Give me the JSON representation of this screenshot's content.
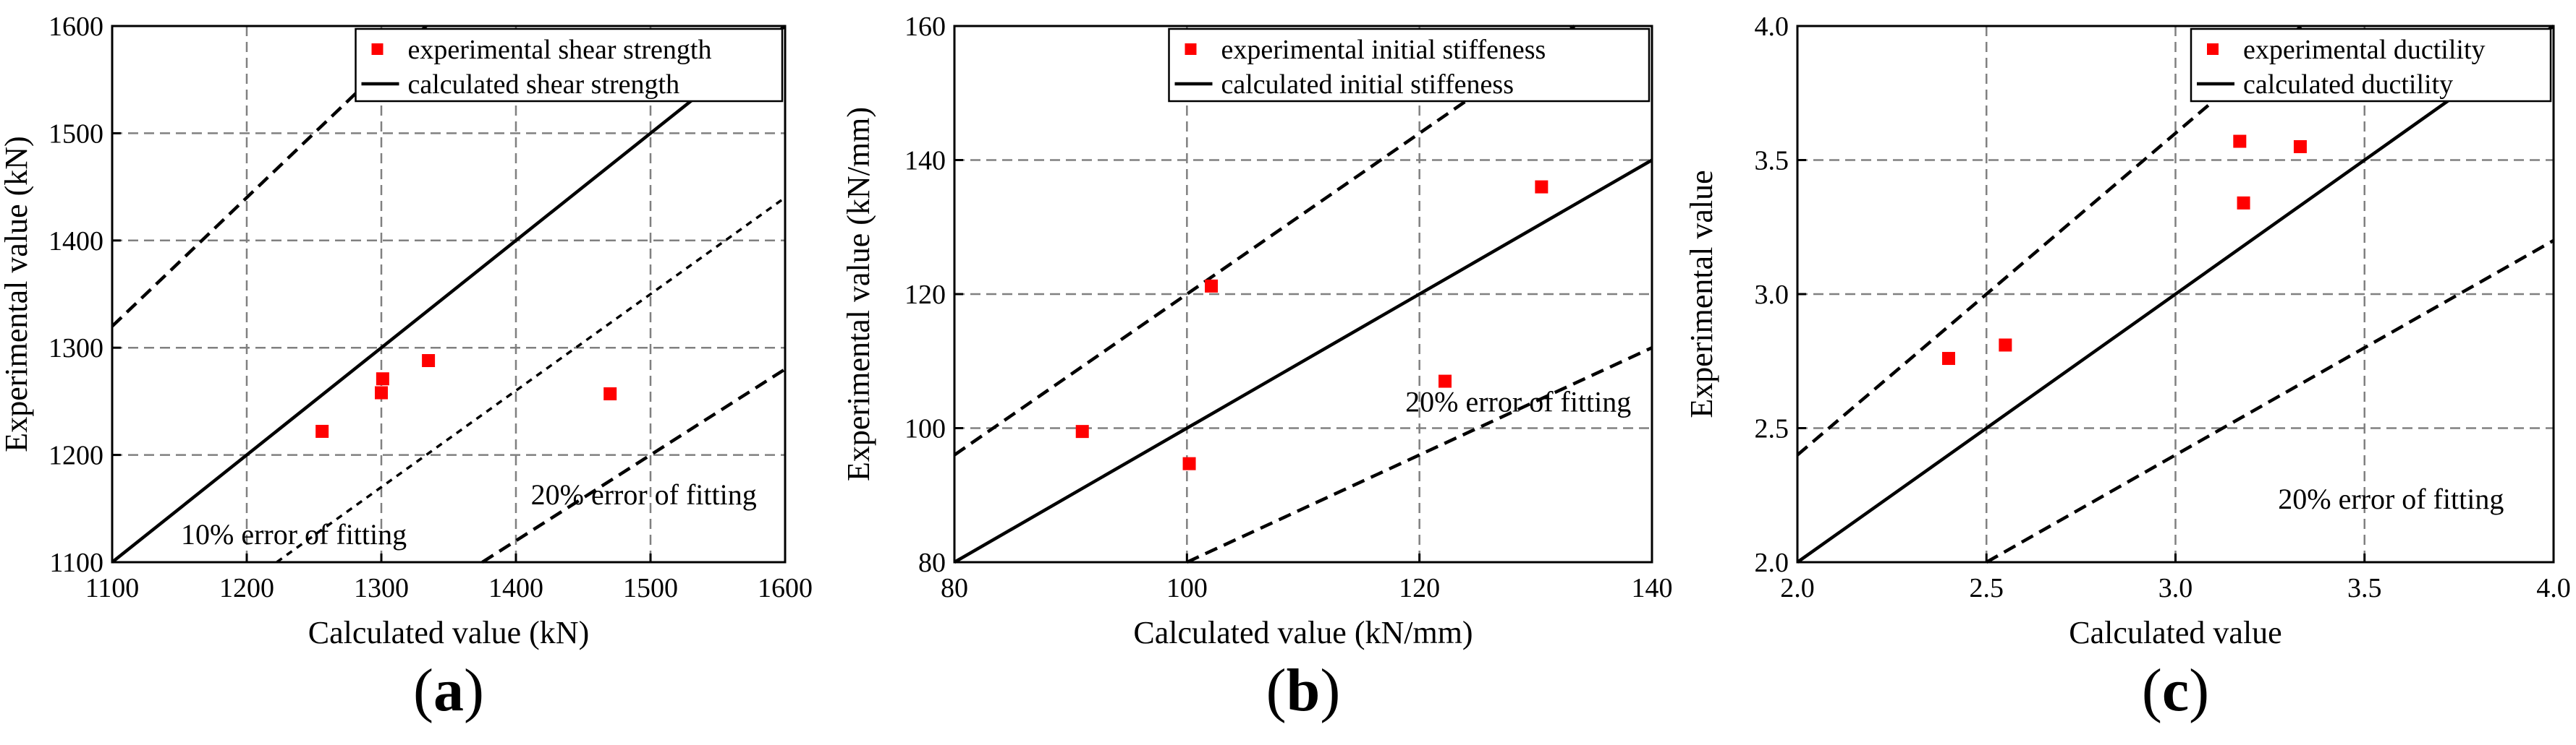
{
  "colors": {
    "marker": "#ff0000",
    "axis": "#000000",
    "grid": "#808080",
    "background": "#ffffff"
  },
  "chart_data": [
    {
      "type": "scatter",
      "panel_label": "(a)",
      "xlabel": "Calculated value (kN)",
      "ylabel": "Experimental value (kN)",
      "xlim": [
        1100,
        1600
      ],
      "ylim": [
        1100,
        1600
      ],
      "xticks": [
        1100,
        1200,
        1300,
        1400,
        1500,
        1600
      ],
      "yticks": [
        1100,
        1200,
        1300,
        1400,
        1500,
        1600
      ],
      "xtick_labels": [
        "1100",
        "1200",
        "1300",
        "1400",
        "1500",
        "1600"
      ],
      "ytick_labels": [
        "1100",
        "1200",
        "1300",
        "1400",
        "1500",
        "1600"
      ],
      "grid": true,
      "legend": {
        "position": "top-right",
        "entries": [
          {
            "label": "experimental shear strength",
            "kind": "marker"
          },
          {
            "label": "calculated shear strength",
            "kind": "line"
          }
        ]
      },
      "scatter": [
        {
          "x": 1256,
          "y": 1222
        },
        {
          "x": 1301,
          "y": 1271
        },
        {
          "x": 1300,
          "y": 1258
        },
        {
          "x": 1335,
          "y": 1288
        },
        {
          "x": 1470,
          "y": 1257
        }
      ],
      "lines": [
        {
          "kind": "calculated",
          "slope": 1.0,
          "style": "solid"
        },
        {
          "kind": "error",
          "slope": 1.2,
          "style": "dashed"
        },
        {
          "kind": "error",
          "slope": 0.9,
          "style": "dotted"
        },
        {
          "kind": "error",
          "slope": 0.8,
          "style": "dashed"
        }
      ],
      "annotations": [
        {
          "text": "20% error of fitting",
          "x": 1495,
          "y": 1154,
          "anchor": "middle"
        },
        {
          "text": "10% error of fitting",
          "x": 1235,
          "y": 1117,
          "anchor": "middle"
        }
      ]
    },
    {
      "type": "scatter",
      "panel_label": "(b)",
      "xlabel": "Calculated value (kN/mm)",
      "ylabel": "Experimental value (kN/mm)",
      "xlim": [
        80,
        140
      ],
      "ylim": [
        80,
        160
      ],
      "xticks": [
        80,
        100,
        120,
        140
      ],
      "yticks": [
        80,
        100,
        120,
        140,
        160
      ],
      "xtick_labels": [
        "80",
        "100",
        "120",
        "140"
      ],
      "ytick_labels": [
        "80",
        "100",
        "120",
        "140",
        "160"
      ],
      "grid": true,
      "legend": {
        "position": "top-right",
        "entries": [
          {
            "label": "experimental initial stiffeness",
            "kind": "marker"
          },
          {
            "label": "calculated initial stiffeness",
            "kind": "line"
          }
        ]
      },
      "scatter": [
        {
          "x": 91,
          "y": 99.5
        },
        {
          "x": 100.2,
          "y": 94.7
        },
        {
          "x": 102.1,
          "y": 121.2
        },
        {
          "x": 122.2,
          "y": 107
        },
        {
          "x": 130.5,
          "y": 136
        }
      ],
      "lines": [
        {
          "kind": "calculated",
          "slope": 1.0,
          "style": "solid"
        },
        {
          "kind": "error",
          "slope": 1.2,
          "style": "dashed"
        },
        {
          "kind": "error",
          "slope": 0.8,
          "style": "dashed"
        }
      ],
      "annotations": [
        {
          "text": "20% error of fitting",
          "x": 128.5,
          "y": 102.5,
          "anchor": "middle"
        }
      ]
    },
    {
      "type": "scatter",
      "panel_label": "(c)",
      "xlabel": "Calculated value",
      "ylabel": "Experimental value",
      "xlim": [
        2.0,
        4.0
      ],
      "ylim": [
        2.0,
        4.0
      ],
      "xticks": [
        2.0,
        2.5,
        3.0,
        3.5,
        4.0
      ],
      "yticks": [
        2.0,
        2.5,
        3.0,
        3.5,
        4.0
      ],
      "xtick_labels": [
        "2.0",
        "2.5",
        "3.0",
        "3.5",
        "4.0"
      ],
      "ytick_labels": [
        "2.0",
        "2.5",
        "3.0",
        "3.5",
        "4.0"
      ],
      "grid": true,
      "legend": {
        "position": "top-right",
        "entries": [
          {
            "label": "experimental ductility",
            "kind": "marker"
          },
          {
            "label": "calculated ductility",
            "kind": "line"
          }
        ]
      },
      "scatter": [
        {
          "x": 2.4,
          "y": 2.76
        },
        {
          "x": 2.55,
          "y": 2.81
        },
        {
          "x": 3.17,
          "y": 3.57
        },
        {
          "x": 3.18,
          "y": 3.34
        },
        {
          "x": 3.33,
          "y": 3.55
        }
      ],
      "lines": [
        {
          "kind": "calculated",
          "slope": 1.0,
          "style": "solid"
        },
        {
          "kind": "error",
          "slope": 1.2,
          "style": "dashed"
        },
        {
          "kind": "error",
          "slope": 0.8,
          "style": "dashed"
        }
      ],
      "annotations": [
        {
          "text": "20% error of fitting",
          "x": 3.57,
          "y": 2.2,
          "anchor": "middle"
        }
      ]
    }
  ]
}
